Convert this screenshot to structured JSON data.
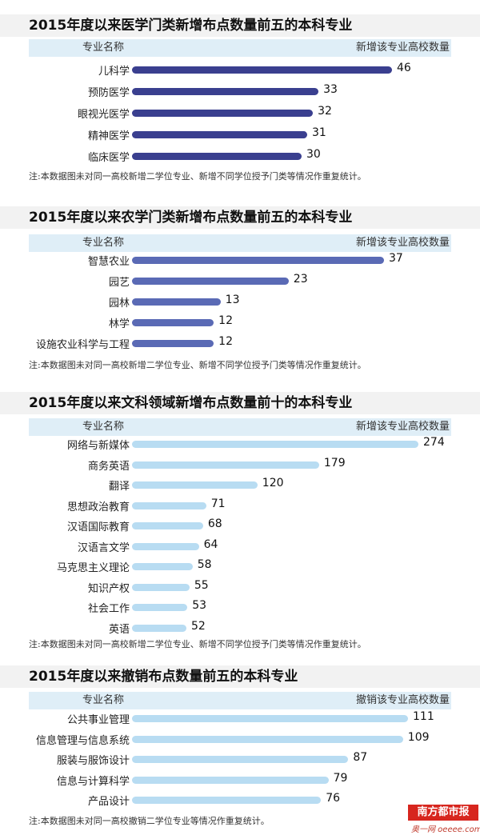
{
  "chart_data": [
    {
      "type": "bar",
      "title": "2015年度以来医学门类新增布点数量前五的本科专业",
      "category_header": "专业名称",
      "value_header": "新增该专业高校数量",
      "categories": [
        "儿科学",
        "预防医学",
        "眼视光医学",
        "精神医学",
        "临床医学"
      ],
      "values": [
        46,
        33,
        32,
        31,
        30
      ],
      "color": "#3a3f8f",
      "note": "注:本数据图未对同一高校新增二学位专业、新增不同学位授予门类等情况作重复统计。"
    },
    {
      "type": "bar",
      "title": "2015年度以来农学门类新增布点数量前五的本科专业",
      "category_header": "专业名称",
      "value_header": "新增该专业高校数量",
      "categories": [
        "智慧农业",
        "园艺",
        "园林",
        "林学",
        "设施农业科学与工程"
      ],
      "values": [
        37,
        23,
        13,
        12,
        12
      ],
      "color": "#5a6ab5",
      "note": "注:本数据图未对同一高校新增二学位专业、新增不同学位授予门类等情况作重复统计。"
    },
    {
      "type": "bar",
      "title": "2015年度以来文科领域新增布点数量前十的本科专业",
      "category_header": "专业名称",
      "value_header": "新增该专业高校数量",
      "categories": [
        "网络与新媒体",
        "商务英语",
        "翻译",
        "思想政治教育",
        "汉语国际教育",
        "汉语言文学",
        "马克思主义理论",
        "知识产权",
        "社会工作",
        "英语"
      ],
      "values": [
        274,
        179,
        120,
        71,
        68,
        64,
        58,
        55,
        53,
        52
      ],
      "color": "#b8dcf2",
      "note": "注:本数据图未对同一高校新增二学位专业、新增不同学位授予门类等情况作重复统计。"
    },
    {
      "type": "bar",
      "title": "2015年度以来撤销布点数量前五的本科专业",
      "category_header": "专业名称",
      "value_header": "撤销该专业高校数量",
      "categories": [
        "公共事业管理",
        "信息管理与信息系统",
        "服装与服饰设计",
        "信息与计算科学",
        "产品设计"
      ],
      "values": [
        111,
        109,
        87,
        79,
        76
      ],
      "color": "#b8dcf2",
      "note": "注:本数据图未对同一高校撤销二学位专业等情况作重复统计。"
    }
  ],
  "logo": {
    "name": "南方都市报",
    "site": "奥一网 oeeee.com"
  }
}
